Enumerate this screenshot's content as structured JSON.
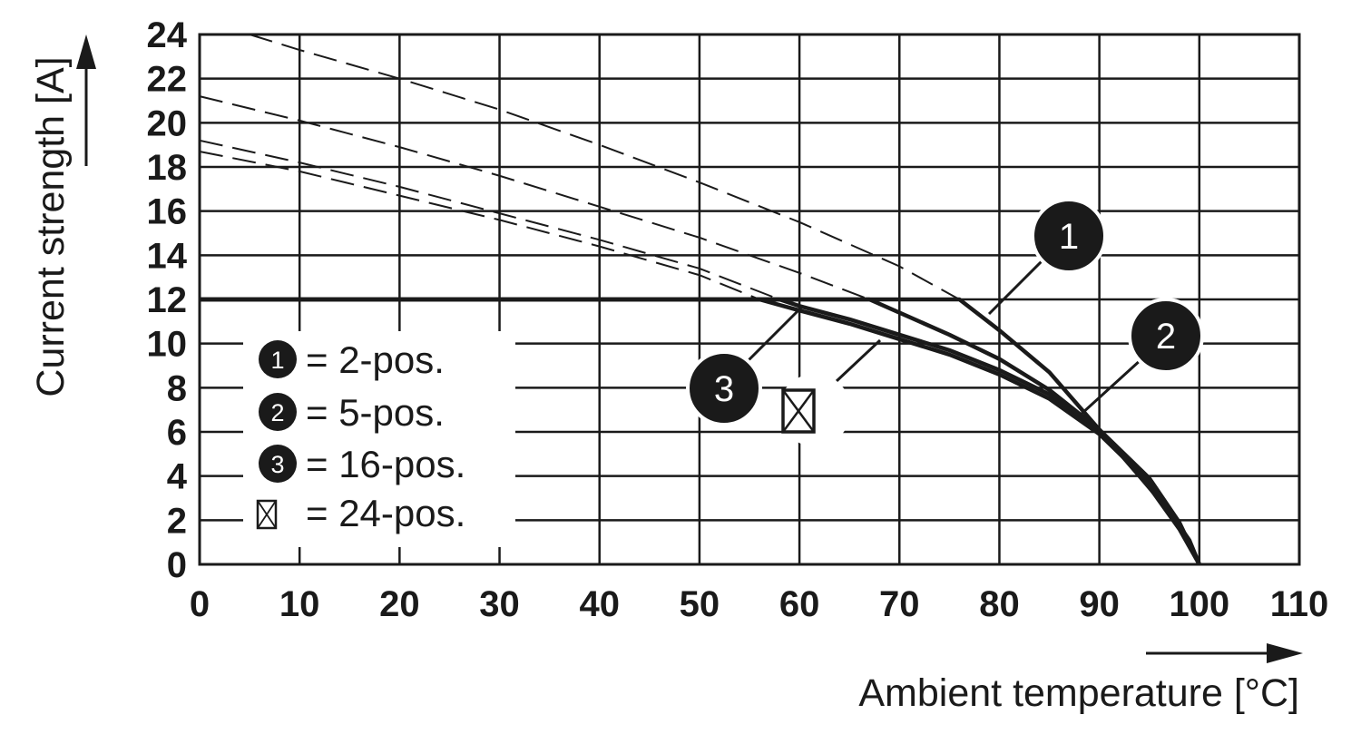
{
  "chart_data": {
    "type": "line",
    "xlabel": "Ambient temperature [°C]",
    "ylabel": "Current strength [A]",
    "xlim": [
      0,
      110
    ],
    "ylim": [
      0,
      24
    ],
    "x_ticks": [
      0,
      10,
      20,
      30,
      40,
      50,
      60,
      70,
      80,
      90,
      100,
      110
    ],
    "y_ticks": [
      0,
      2,
      4,
      6,
      8,
      10,
      12,
      14,
      16,
      18,
      20,
      22,
      24
    ],
    "grid": true,
    "legend_position": "bottom-left",
    "current_limit": 12,
    "series": [
      {
        "id": "1",
        "legend": "= 2-pos.",
        "limited_x": [
          0,
          76,
          80,
          85,
          90,
          94,
          97,
          99,
          100
        ],
        "limited_y": [
          12,
          12,
          10.6,
          8.7,
          6.1,
          4.0,
          2.4,
          1.1,
          0
        ],
        "extrapolated_x": [
          5,
          10,
          20,
          30,
          40,
          50,
          60,
          70,
          76
        ],
        "extrapolated_y": [
          24,
          23.3,
          22.0,
          20.6,
          19.0,
          17.3,
          15.5,
          13.5,
          12
        ]
      },
      {
        "id": "2",
        "legend": "= 5-pos.",
        "limited_x": [
          0,
          67,
          70,
          75,
          80,
          85,
          90,
          95,
          98,
          100
        ],
        "limited_y": [
          12,
          12,
          11.4,
          10.4,
          9.3,
          7.9,
          6.1,
          3.5,
          1.6,
          0
        ],
        "extrapolated_x": [
          0,
          10,
          20,
          30,
          40,
          50,
          60,
          67
        ],
        "extrapolated_y": [
          21.2,
          20.1,
          18.9,
          17.6,
          16.2,
          14.8,
          13.2,
          12
        ]
      },
      {
        "id": "3",
        "legend": "= 16-pos.",
        "limited_x": [
          0,
          58,
          60,
          65,
          70,
          75,
          80,
          85,
          90,
          95,
          98,
          100
        ],
        "limited_y": [
          12,
          12,
          11.7,
          11.1,
          10.4,
          9.7,
          8.8,
          7.7,
          6.1,
          3.9,
          1.9,
          0
        ],
        "extrapolated_x": [
          0,
          10,
          20,
          30,
          40,
          50,
          58
        ],
        "extrapolated_y": [
          19.2,
          18.2,
          17.1,
          15.9,
          14.7,
          13.4,
          12
        ]
      },
      {
        "id": "⊠",
        "legend": "= 24-pos.",
        "limited_x": [
          0,
          56,
          60,
          65,
          70,
          75,
          80,
          85,
          90,
          95,
          98,
          100
        ],
        "limited_y": [
          12,
          12,
          11.5,
          10.9,
          10.2,
          9.5,
          8.6,
          7.5,
          5.9,
          3.7,
          1.8,
          0
        ],
        "extrapolated_x": [
          0,
          10,
          20,
          30,
          40,
          50,
          56
        ],
        "extrapolated_y": [
          18.7,
          17.8,
          16.7,
          15.6,
          14.4,
          13.1,
          12
        ]
      }
    ]
  },
  "colors": {
    "line": "#1a1a1a",
    "grid": "#1a1a1a",
    "background": "#ffffff"
  }
}
